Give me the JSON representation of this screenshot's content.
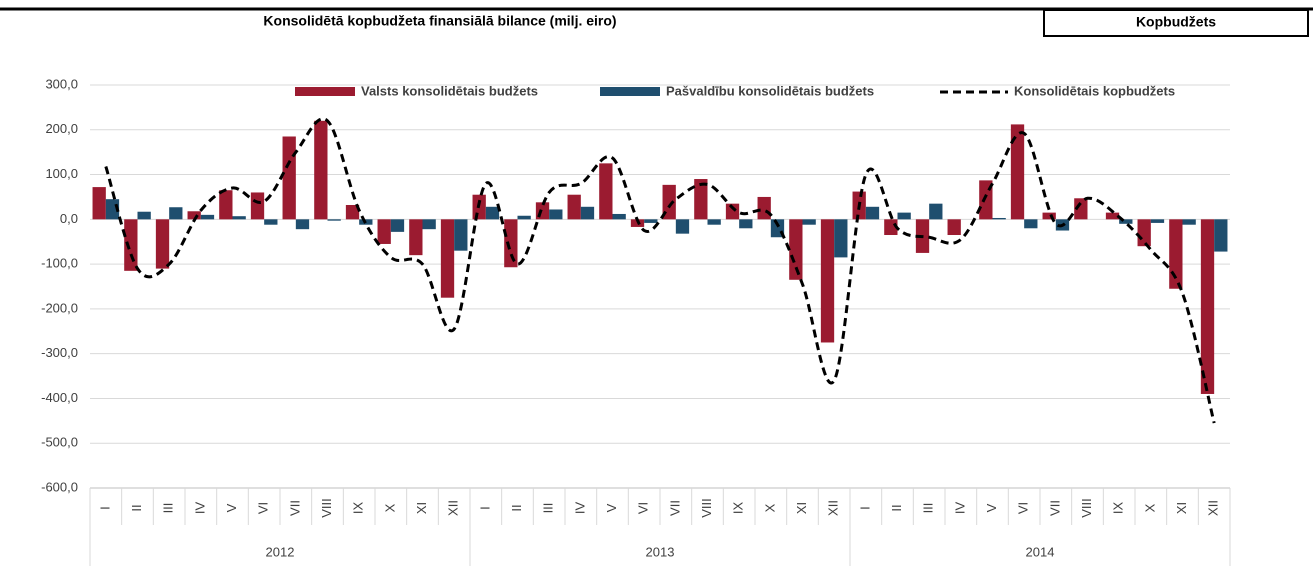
{
  "header": {
    "tab": "Kopbudžets"
  },
  "chart_data": {
    "type": "bar_line",
    "title": "Konsolidētā kopbudžeta finansiālā bilance (milj. eiro)",
    "categories": [
      "I",
      "II",
      "III",
      "IV",
      "V",
      "VI",
      "VII",
      "VIII",
      "IX",
      "X",
      "XI",
      "XII",
      "I",
      "II",
      "III",
      "IV",
      "V",
      "VI",
      "VII",
      "VIII",
      "IX",
      "X",
      "XI",
      "XII",
      "I",
      "II",
      "III",
      "IV",
      "V",
      "VI",
      "VII",
      "VIII",
      "IX",
      "X",
      "XI",
      "XII"
    ],
    "groups": [
      "2012",
      "2013",
      "2014"
    ],
    "series": [
      {
        "name": "Valsts konsolidētais budžets",
        "type": "bar",
        "color": "#9b1b30",
        "values": [
          72,
          -115,
          -110,
          18,
          65,
          60,
          185,
          220,
          32,
          -55,
          -80,
          -175,
          55,
          -107,
          38,
          55,
          125,
          -17,
          77,
          90,
          35,
          50,
          -135,
          -275,
          62,
          -35,
          -75,
          -35,
          87,
          212,
          15,
          47,
          15,
          -60,
          -155,
          -390
        ]
      },
      {
        "name": "Pašvaldību konsolidētais budžets",
        "type": "bar",
        "color": "#1f4e6e",
        "values": [
          45,
          17,
          27,
          10,
          7,
          -12,
          -22,
          -3,
          -12,
          -28,
          -22,
          -70,
          28,
          8,
          22,
          28,
          12,
          -8,
          -32,
          -12,
          -20,
          -40,
          -12,
          -85,
          28,
          15,
          35,
          0,
          3,
          -20,
          -25,
          0,
          -10,
          -8,
          -12,
          -72
        ]
      },
      {
        "name": "Konsolidētais kopbudžets",
        "type": "line",
        "color": "#000000",
        "values": [
          118,
          -110,
          -100,
          20,
          70,
          40,
          150,
          220,
          20,
          -85,
          -100,
          -245,
          80,
          -100,
          60,
          80,
          137,
          -25,
          45,
          78,
          15,
          10,
          -145,
          -360,
          100,
          -20,
          -40,
          -45,
          80,
          192,
          -10,
          47,
          5,
          -68,
          -165,
          -455
        ]
      }
    ],
    "ylim": [
      -600,
      300
    ],
    "yticks": [
      {
        "value": -600,
        "label": "-600,0"
      },
      {
        "value": -500,
        "label": "-500,0"
      },
      {
        "value": -400,
        "label": "-400,0"
      },
      {
        "value": -300,
        "label": "-300,0"
      },
      {
        "value": -200,
        "label": "-200,0"
      },
      {
        "value": -100,
        "label": "-100,0"
      },
      {
        "value": 0,
        "label": "0,0"
      },
      {
        "value": 100,
        "label": "100,0"
      },
      {
        "value": 200,
        "label": "200,0"
      },
      {
        "value": 300,
        "label": "300,0"
      }
    ],
    "grid": true
  }
}
